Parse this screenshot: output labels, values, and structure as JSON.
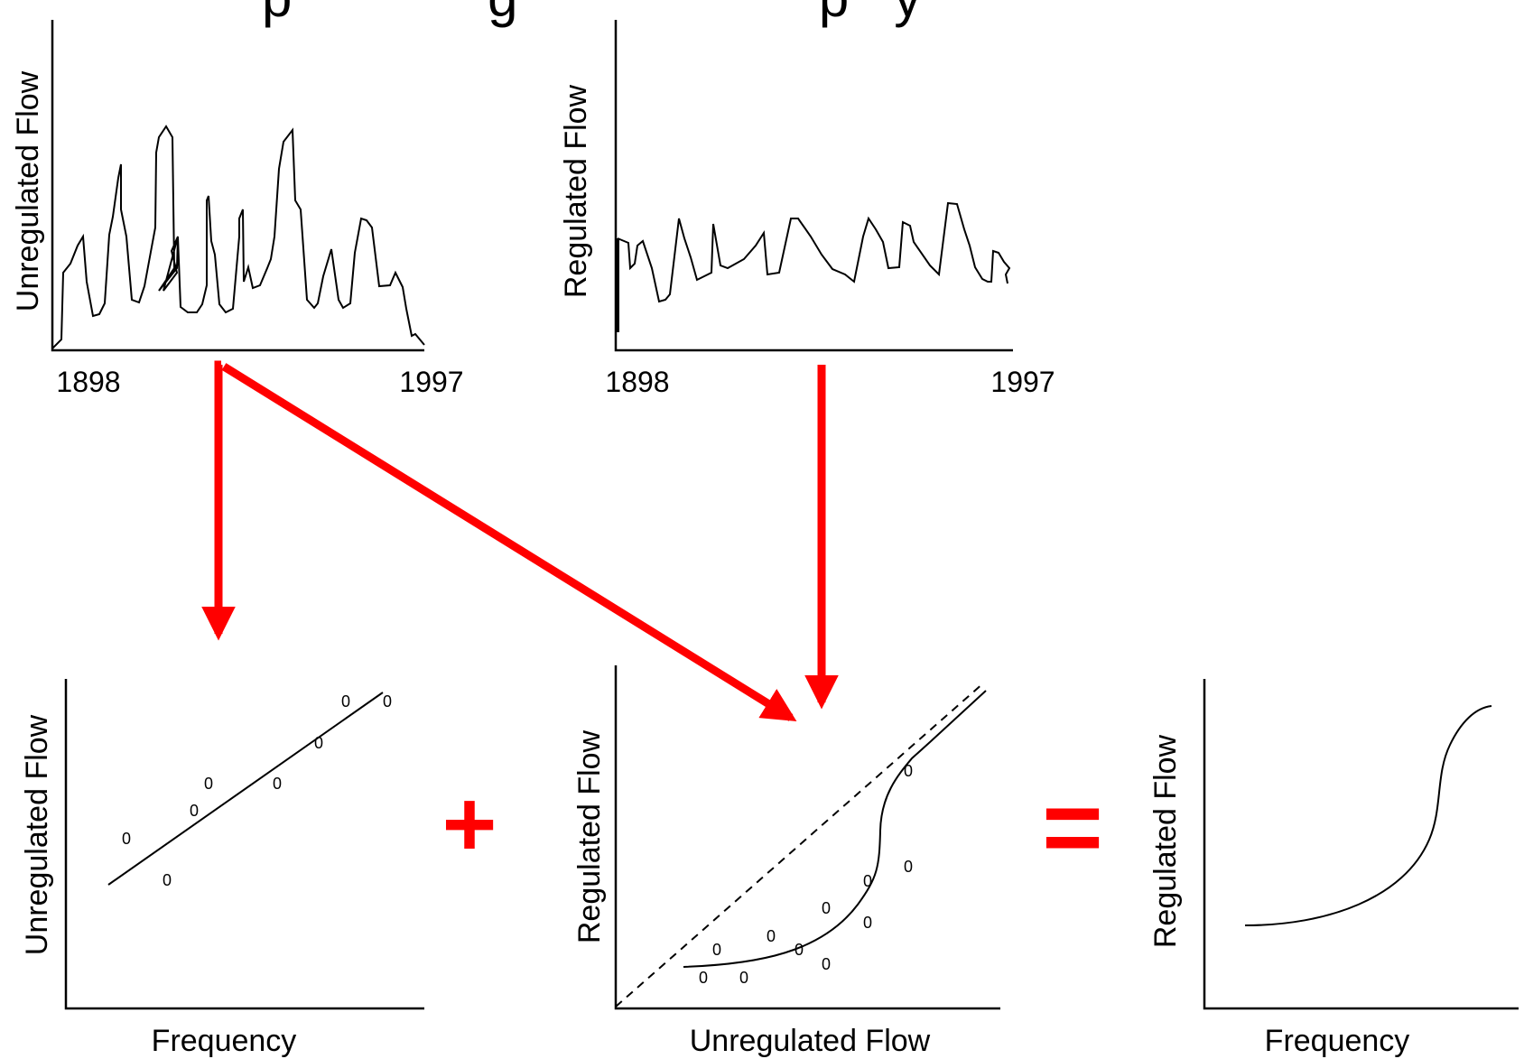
{
  "title_fragment": "p             g                    p   y",
  "panels": {
    "unregulated_series": {
      "y_label": "Unregulated Flow",
      "x_start": "1898",
      "x_end": "1997"
    },
    "regulated_series": {
      "y_label": "Regulated Flow",
      "x_start": "1898",
      "x_end": "1997"
    },
    "unregulated_frequency": {
      "y_label": "Unregulated Flow",
      "x_label": "Frequency"
    },
    "regulated_vs_unregulated": {
      "y_label": "Regulated Flow",
      "x_label": "Unregulated Flow"
    },
    "regulated_frequency": {
      "y_label": "Regulated Flow",
      "x_label": "Frequency"
    }
  },
  "observation_marker": "0",
  "operators": {
    "plus": "+",
    "equals": "="
  },
  "colors": {
    "arrow": "#ff0000",
    "line": "#000000"
  }
}
